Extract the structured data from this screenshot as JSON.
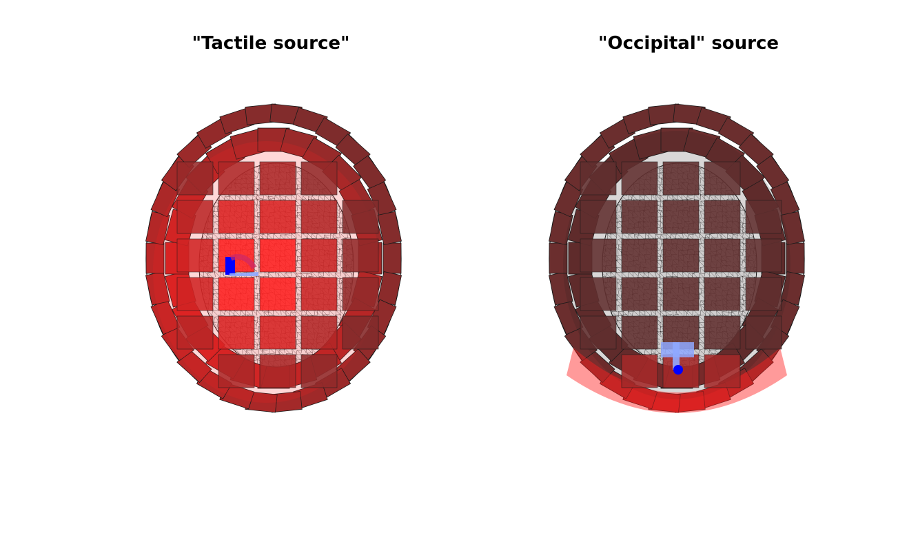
{
  "figure": {
    "panels": [
      {
        "title": "\"Tactile source\"",
        "source_region": "left-central",
        "colors": {
          "hot": "#ff2020",
          "cold": "#3a3333",
          "dipole": "#0000ff",
          "mesh": "#000000"
        }
      },
      {
        "title": "\"Occipital\" source",
        "source_region": "occipital",
        "colors": {
          "hot": "#ff2020",
          "cold": "#3a3333",
          "dipole": "#0000ff",
          "mesh": "#000000"
        }
      }
    ]
  }
}
